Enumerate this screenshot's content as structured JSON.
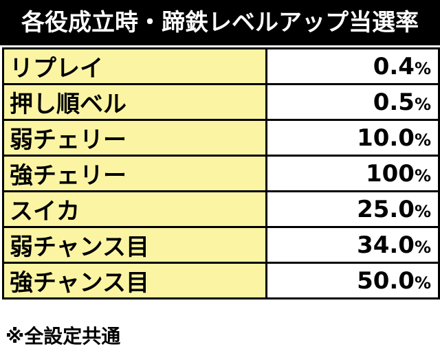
{
  "title": "各役成立時・蹄鉄レベルアップ当選率",
  "rows": [
    {
      "label": "リプレイ",
      "value": "0.4",
      "unit": "%"
    },
    {
      "label": "押し順ベル",
      "value": "0.5",
      "unit": "%"
    },
    {
      "label": "弱チェリー",
      "value": "10.0",
      "unit": "%"
    },
    {
      "label": "強チェリー",
      "value": "100",
      "unit": "%"
    },
    {
      "label": "スイカ",
      "value": "25.0",
      "unit": "%"
    },
    {
      "label": "弱チャンス目",
      "value": "34.0",
      "unit": "%"
    },
    {
      "label": "強チャンス目",
      "value": "50.0",
      "unit": "%"
    }
  ],
  "footnote": "※全設定共通",
  "colors": {
    "header_bg": "#000000",
    "label_bg": "#fbf5a3",
    "value_bg": "#ffffff"
  }
}
